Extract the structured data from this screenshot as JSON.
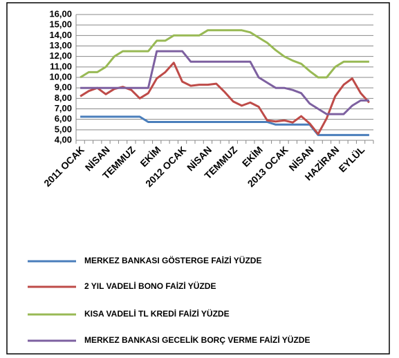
{
  "chart_data": {
    "type": "line",
    "categories": [
      "2011 OCAK",
      null,
      null,
      "NİSAN",
      null,
      null,
      "TEMMUZ",
      null,
      null,
      "EKİM",
      null,
      null,
      "2012 OCAK",
      null,
      null,
      "NİSAN",
      null,
      null,
      "TEMMUZ",
      null,
      null,
      "EKİM",
      null,
      null,
      "2013 OCAK",
      null,
      null,
      "NİSAN",
      null,
      null,
      "HAZİRAN",
      null,
      null,
      "EYLÜL",
      null
    ],
    "series": [
      {
        "name": "MERKEZ BANKASI GÖSTERGE FAİZİ YÜZDE",
        "color": "#4a7ebb",
        "values": [
          6.25,
          6.25,
          6.25,
          6.25,
          6.25,
          6.25,
          6.25,
          6.25,
          5.75,
          5.75,
          5.75,
          5.75,
          5.75,
          5.75,
          5.75,
          5.75,
          5.75,
          5.75,
          5.75,
          5.75,
          5.75,
          5.75,
          5.75,
          5.5,
          5.5,
          5.5,
          5.5,
          5.5,
          4.5,
          4.5,
          4.5,
          4.5,
          4.5,
          4.5,
          4.5
        ]
      },
      {
        "name": "2 YIL VADELİ BONO FAİZİ YÜZDE",
        "color": "#be4b48",
        "values": [
          8.2,
          8.7,
          9.0,
          8.4,
          8.9,
          9.1,
          8.8,
          8.0,
          8.5,
          9.9,
          10.5,
          11.4,
          9.6,
          9.2,
          9.3,
          9.3,
          9.4,
          8.6,
          7.7,
          7.3,
          7.6,
          7.2,
          5.9,
          5.8,
          5.9,
          5.7,
          6.3,
          5.6,
          4.6,
          6.1,
          8.2,
          9.3,
          9.9,
          8.5,
          7.6
        ]
      },
      {
        "name": "KISA VADELİ TL KREDİ FAİZİ YÜZDE",
        "color": "#98b954",
        "values": [
          10.0,
          10.5,
          10.5,
          11.0,
          12.0,
          12.5,
          12.5,
          12.5,
          12.5,
          13.5,
          13.5,
          14.0,
          14.0,
          14.0,
          14.0,
          14.5,
          14.5,
          14.5,
          14.5,
          14.5,
          14.3,
          13.8,
          13.3,
          12.6,
          12.0,
          11.6,
          11.3,
          10.6,
          10.0,
          10.0,
          11.0,
          11.5,
          11.5,
          11.5,
          11.5
        ]
      },
      {
        "name": "MERKEZ BANKASI GECELİK BORÇ VERME FAİZİ YÜZDE",
        "color": "#7d60a0",
        "values": [
          9,
          9,
          9,
          9,
          9,
          9,
          9,
          9,
          9,
          12.5,
          12.5,
          12.5,
          12.5,
          11.5,
          11.5,
          11.5,
          11.5,
          11.5,
          11.5,
          11.5,
          11.5,
          10.0,
          9.5,
          9.0,
          9.0,
          8.8,
          8.5,
          7.5,
          7.0,
          6.5,
          6.5,
          6.5,
          7.3,
          7.8,
          7.8
        ]
      }
    ],
    "ylim": [
      4,
      16
    ],
    "yticks": [
      {
        "value": 4,
        "label": "4,00"
      },
      {
        "value": 5,
        "label": "5,00"
      },
      {
        "value": 6,
        "label": "6,00"
      },
      {
        "value": 7,
        "label": "7,00"
      },
      {
        "value": 8,
        "label": "8,00"
      },
      {
        "value": 9,
        "label": "9,00"
      },
      {
        "value": 10,
        "label": "10,00"
      },
      {
        "value": 11,
        "label": "11,00"
      },
      {
        "value": 12,
        "label": "12,00"
      },
      {
        "value": 13,
        "label": "13,00"
      },
      {
        "value": 14,
        "label": "14,00"
      },
      {
        "value": 15,
        "label": "15,00"
      },
      {
        "value": 16,
        "label": "16,00"
      }
    ],
    "grid": true
  }
}
